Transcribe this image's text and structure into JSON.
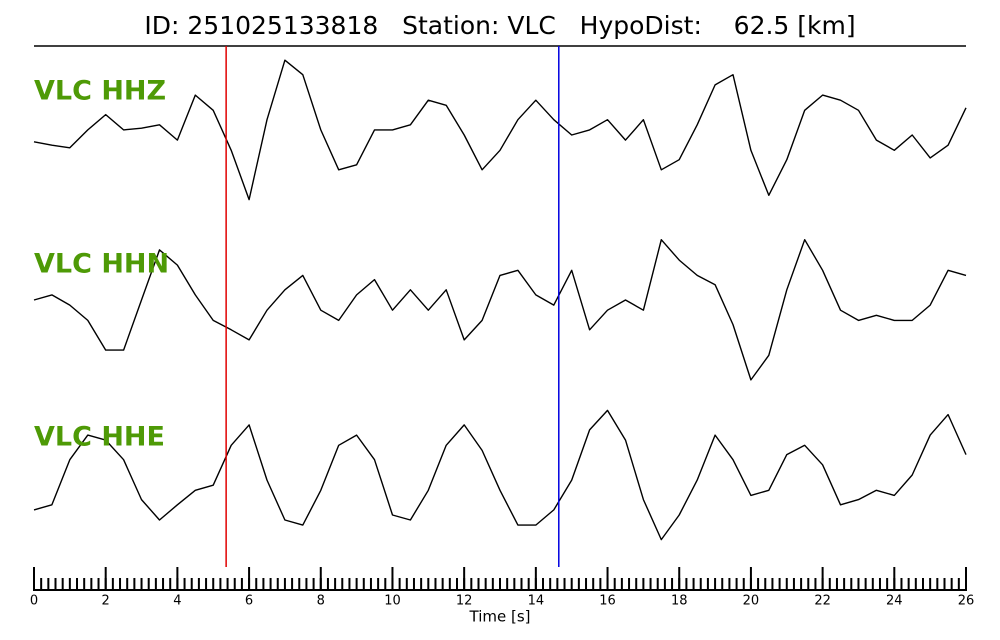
{
  "chart_data": {
    "type": "line",
    "title": "ID: 251025133818   Station: VLC   HypoDist:    62.5 [km]",
    "xlabel": "Time [s]",
    "label_color": "#4e9a06",
    "x": [
      0,
      0.5,
      1,
      1.5,
      2,
      2.5,
      3,
      3.5,
      4,
      4.5,
      5,
      5.5,
      6,
      6.5,
      7,
      7.5,
      8,
      8.5,
      9,
      9.5,
      10,
      10.5,
      11,
      11.5,
      12,
      12.5,
      13,
      13.5,
      14,
      14.5,
      15,
      15.5,
      16,
      16.5,
      17,
      17.5,
      18,
      18.5,
      19,
      19.5,
      20,
      20.5,
      21,
      21.5,
      22,
      22.5,
      23,
      23.5,
      24,
      24.5,
      25,
      25.5,
      26
    ],
    "xlim": [
      0,
      26
    ],
    "xticks": [
      0,
      2,
      4,
      6,
      8,
      10,
      12,
      14,
      16,
      18,
      20,
      22,
      24,
      26
    ],
    "xminorticks": [
      0,
      0.2,
      0.4,
      0.6,
      0.8,
      1,
      1.2,
      1.4,
      1.6,
      1.8,
      2,
      2.2,
      2.4,
      2.6,
      2.8,
      3,
      3.2,
      3.4,
      3.6,
      3.8,
      4,
      4.2,
      4.4,
      4.6,
      4.8,
      5,
      5.2,
      5.4,
      5.6,
      5.8,
      6,
      6.2,
      6.4,
      6.6,
      6.8,
      7,
      7.2,
      7.4,
      7.6,
      7.8,
      8,
      8.2,
      8.4,
      8.6,
      8.8,
      9,
      9.2,
      9.4,
      9.6,
      9.8,
      10,
      10.2,
      10.4,
      10.6,
      10.8,
      11,
      11.2,
      11.4,
      11.6,
      11.8,
      12,
      12.2,
      12.4,
      12.6,
      12.8,
      13,
      13.2,
      13.4,
      13.6,
      13.8,
      14,
      14.2,
      14.4,
      14.6,
      14.8,
      15,
      15.2,
      15.4,
      15.6,
      15.8,
      16,
      16.2,
      16.4,
      16.6,
      16.8,
      17,
      17.2,
      17.4,
      17.6,
      17.8,
      18,
      18.2,
      18.4,
      18.6,
      18.8,
      19,
      19.2,
      19.4,
      19.6,
      19.8,
      20,
      20.2,
      20.4,
      20.6,
      20.8,
      21,
      21.2,
      21.4,
      21.6,
      21.8,
      22,
      22.2,
      22.4,
      22.6,
      22.8,
      23,
      23.2,
      23.4,
      23.6,
      23.8,
      24,
      24.2,
      24.4,
      24.6,
      24.8,
      25,
      25.2,
      25.4,
      25.6,
      25.8,
      26
    ],
    "ylim": [
      -1,
      1
    ],
    "picks": [
      {
        "value": 5.36,
        "color": "#e00000"
      },
      {
        "value": 14.64,
        "color": "#0000e0"
      }
    ],
    "series": [
      {
        "name": "VLC HHZ",
        "color": "#000000",
        "values": [
          -0.08,
          -0.12,
          -0.15,
          0.06,
          0.24,
          0.06,
          0.08,
          0.12,
          -0.06,
          0.47,
          0.29,
          -0.18,
          -0.76,
          0.18,
          0.88,
          0.71,
          0.06,
          -0.41,
          -0.35,
          0.06,
          0.06,
          0.12,
          0.41,
          0.35,
          0,
          -0.41,
          -0.18,
          0.18,
          0.41,
          0.18,
          0,
          0.06,
          0.18,
          -0.06,
          0.18,
          -0.41,
          -0.29,
          0.12,
          0.59,
          0.71,
          -0.18,
          -0.71,
          -0.29,
          0.29,
          0.47,
          0.41,
          0.29,
          -0.06,
          -0.18,
          0,
          -0.27,
          -0.12,
          0.32
        ]
      },
      {
        "name": "VLC HHN",
        "color": "#000000",
        "values": [
          0,
          0.06,
          -0.06,
          -0.24,
          -0.59,
          -0.59,
          0,
          0.59,
          0.41,
          0.06,
          -0.24,
          -0.35,
          -0.47,
          -0.12,
          0.12,
          0.29,
          -0.12,
          -0.24,
          0.06,
          0.24,
          -0.12,
          0.12,
          -0.12,
          0.12,
          -0.47,
          -0.24,
          0.29,
          0.35,
          0.06,
          -0.06,
          0.35,
          -0.35,
          -0.12,
          0,
          -0.12,
          0.71,
          0.47,
          0.29,
          0.18,
          -0.29,
          -0.94,
          -0.65,
          0.12,
          0.71,
          0.35,
          -0.12,
          -0.24,
          -0.18,
          -0.24,
          -0.24,
          -0.06,
          0.35,
          0.29
        ]
      },
      {
        "name": "VLC HHE",
        "color": "#000000",
        "values": [
          -0.41,
          -0.35,
          0.18,
          0.47,
          0.41,
          0.18,
          -0.29,
          -0.53,
          -0.35,
          -0.18,
          -0.12,
          0.35,
          0.59,
          -0.06,
          -0.53,
          -0.59,
          -0.18,
          0.35,
          0.47,
          0.18,
          -0.47,
          -0.53,
          -0.18,
          0.35,
          0.59,
          0.29,
          -0.18,
          -0.59,
          -0.59,
          -0.41,
          -0.06,
          0.53,
          0.76,
          0.41,
          -0.29,
          -0.76,
          -0.47,
          -0.06,
          0.47,
          0.18,
          -0.24,
          -0.18,
          0.24,
          0.35,
          0.12,
          -0.35,
          -0.29,
          -0.18,
          -0.24,
          0,
          0.47,
          0.71,
          0.24
        ]
      }
    ]
  }
}
